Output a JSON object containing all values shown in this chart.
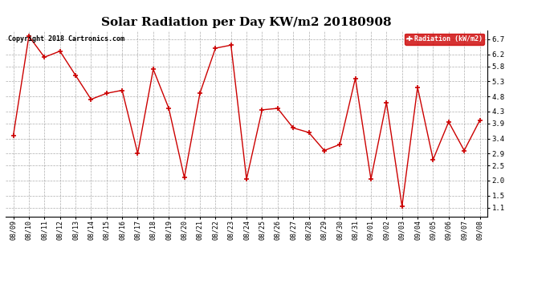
{
  "title": "Solar Radiation per Day KW/m2 20180908",
  "copyright": "Copyright 2018 Cartronics.com",
  "legend_label": "Radiation (kW/m2)",
  "dates": [
    "08/09",
    "08/10",
    "08/11",
    "08/12",
    "08/13",
    "08/14",
    "08/15",
    "08/16",
    "08/17",
    "08/18",
    "08/19",
    "08/20",
    "08/21",
    "08/22",
    "08/23",
    "08/24",
    "08/25",
    "08/26",
    "08/27",
    "08/28",
    "08/29",
    "08/30",
    "08/31",
    "09/01",
    "09/02",
    "09/03",
    "09/04",
    "09/05",
    "09/06",
    "09/07",
    "09/08"
  ],
  "values": [
    3.5,
    6.8,
    6.1,
    6.3,
    5.5,
    4.7,
    4.9,
    5.0,
    2.9,
    5.7,
    4.4,
    2.1,
    4.9,
    6.4,
    6.5,
    2.05,
    4.35,
    4.4,
    3.75,
    3.6,
    3.0,
    3.2,
    5.4,
    2.05,
    4.6,
    1.15,
    5.1,
    2.7,
    3.95,
    3.0,
    4.0
  ],
  "line_color": "#cc0000",
  "marker": "+",
  "background_color": "#ffffff",
  "plot_bg_color": "#ffffff",
  "grid_color": "#999999",
  "ylim": [
    0.8,
    7.0
  ],
  "yticks": [
    1.1,
    1.5,
    2.0,
    2.5,
    2.9,
    3.4,
    3.9,
    4.3,
    4.8,
    5.3,
    5.8,
    6.2,
    6.7
  ],
  "title_fontsize": 11,
  "tick_fontsize": 6,
  "copyright_fontsize": 6,
  "legend_bg": "#cc0000",
  "legend_fg": "#ffffff"
}
